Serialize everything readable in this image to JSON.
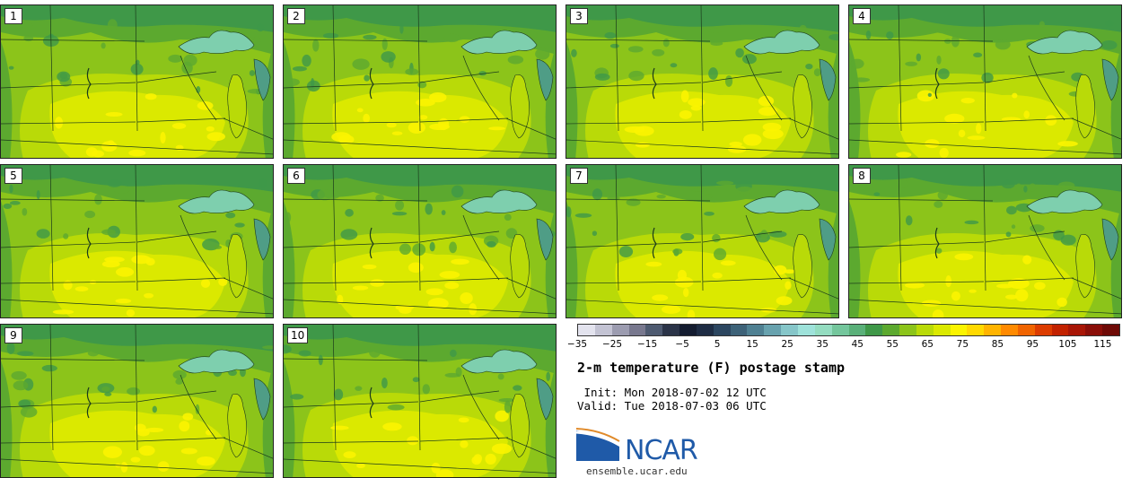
{
  "product": {
    "title": "2-m temperature (F) postage stamp",
    "init": " Init: Mon 2018-07-02 12 UTC",
    "valid": "Valid: Tue 2018-07-03 06 UTC",
    "organization": "NCAR",
    "site": "ensemble.ucar.edu"
  },
  "members": [
    {
      "label": "1"
    },
    {
      "label": "2"
    },
    {
      "label": "3"
    },
    {
      "label": "4"
    },
    {
      "label": "5"
    },
    {
      "label": "6"
    },
    {
      "label": "7"
    },
    {
      "label": "8"
    },
    {
      "label": "9"
    },
    {
      "label": "10"
    }
  ],
  "colorbar": {
    "units": "F",
    "min": -35,
    "max": 120,
    "ticks": [
      "−35",
      "−25",
      "−15",
      "−5",
      "5",
      "15",
      "25",
      "35",
      "45",
      "55",
      "65",
      "75",
      "85",
      "95",
      "105",
      "115"
    ],
    "colors": [
      "#e3e3ee",
      "#c3c3d3",
      "#9c9cb0",
      "#78788e",
      "#4e5a70",
      "#2b3448",
      "#141c30",
      "#1e2c44",
      "#2c4660",
      "#3d6278",
      "#4f8092",
      "#68a2ae",
      "#86c6c9",
      "#9ee2da",
      "#94dcc0",
      "#74c69c",
      "#5ab079",
      "#3f9848",
      "#5ca92f",
      "#8cc41a",
      "#b9da08",
      "#dbe900",
      "#fbf400",
      "#ffd900",
      "#ffb400",
      "#ff8a00",
      "#f06400",
      "#dc3c00",
      "#c22200",
      "#a81606",
      "#8a0e08",
      "#6e0a06"
    ]
  },
  "map_colors": {
    "dark_green": "#3f9848",
    "mid_green": "#5ca92f",
    "light_green": "#8cc41a",
    "yellow_green": "#b9da08",
    "yellow": "#dbe900",
    "bright_yellow": "#fbf400",
    "lake": "#7ecfae",
    "lake_dark": "#4f9d86",
    "border": "#1b3b1b"
  }
}
